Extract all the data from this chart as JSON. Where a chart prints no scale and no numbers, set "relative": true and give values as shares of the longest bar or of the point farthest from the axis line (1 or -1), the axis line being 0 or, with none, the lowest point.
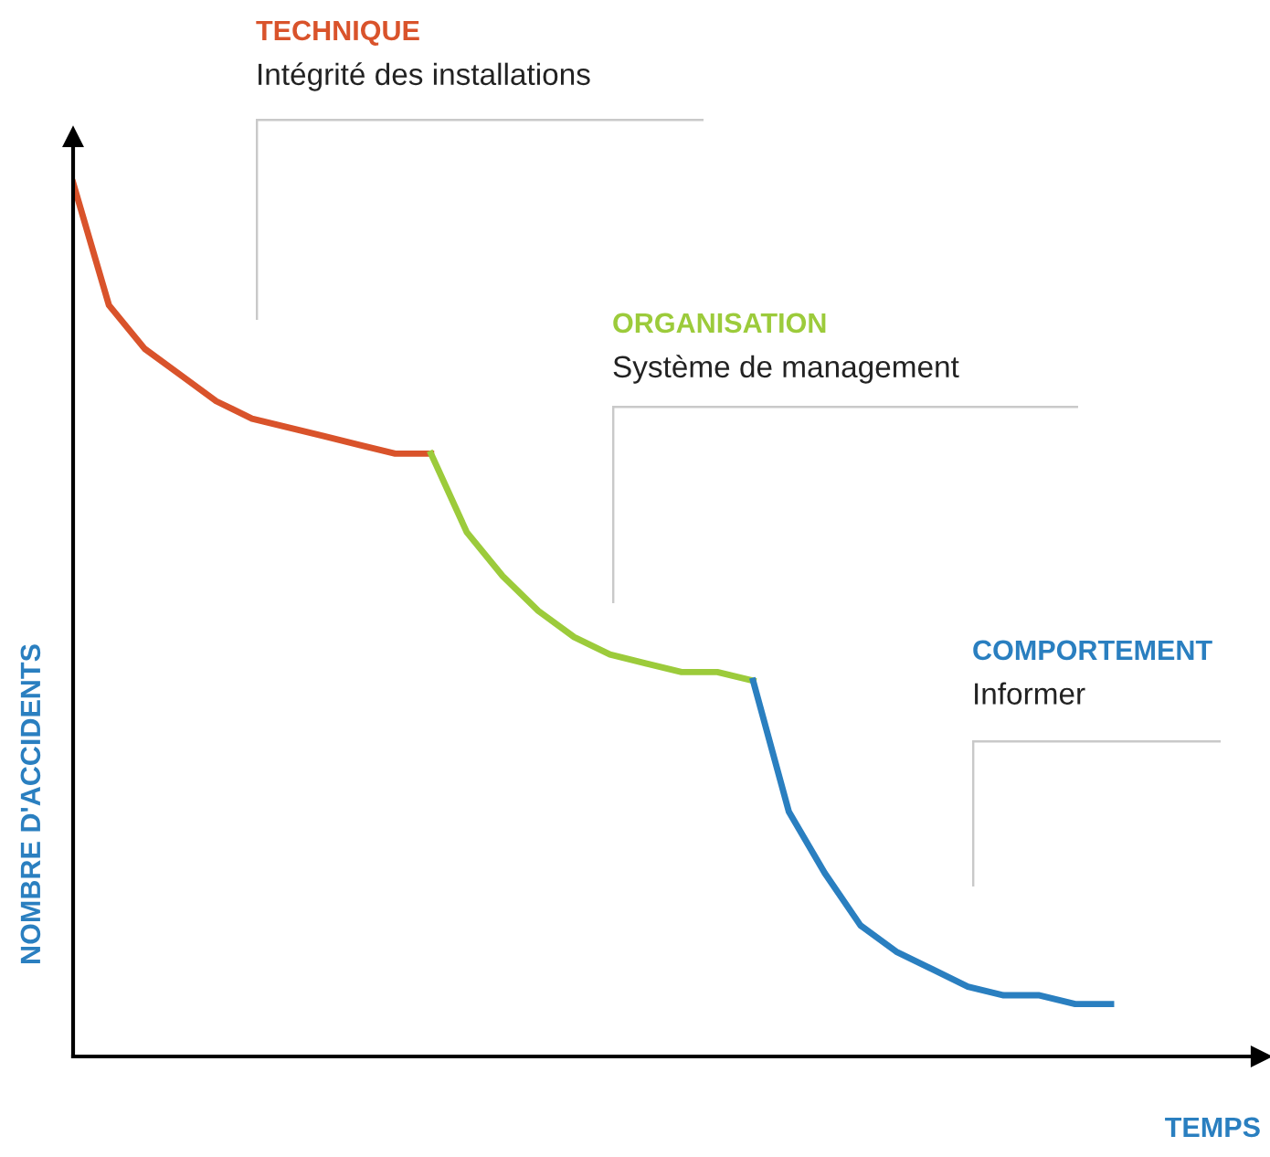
{
  "chart_data": {
    "type": "line",
    "relative": true,
    "xlabel": "TEMPS",
    "ylabel": "NOMBRE D'ACCIDENTS",
    "categories": [
      null,
      null,
      null,
      null,
      null,
      null,
      null,
      null,
      null,
      null,
      null,
      null,
      null,
      null,
      null,
      null,
      null,
      null,
      null,
      null,
      null,
      null,
      null,
      null,
      null,
      null,
      null,
      null,
      null,
      null
    ],
    "series": [
      {
        "name": "TECHNIQUE",
        "color": "#d9532b",
        "values": [
          1.0,
          0.86,
          0.81,
          0.78,
          0.75,
          0.73,
          0.72,
          0.71,
          0.7,
          0.69,
          0.69,
          null,
          null,
          null,
          null,
          null,
          null,
          null,
          null,
          null,
          null,
          null,
          null,
          null,
          null,
          null,
          null,
          null,
          null,
          null
        ]
      },
      {
        "name": "ORGANISATION",
        "color": "#9ccb3b",
        "values": [
          null,
          null,
          null,
          null,
          null,
          null,
          null,
          null,
          null,
          null,
          0.69,
          0.6,
          0.55,
          0.51,
          0.48,
          0.46,
          0.45,
          0.44,
          0.44,
          0.43,
          null,
          null,
          null,
          null,
          null,
          null,
          null,
          null,
          null,
          null
        ]
      },
      {
        "name": "COMPORTEMENT",
        "color": "#2a7fc0",
        "values": [
          null,
          null,
          null,
          null,
          null,
          null,
          null,
          null,
          null,
          null,
          null,
          null,
          null,
          null,
          null,
          null,
          null,
          null,
          null,
          0.43,
          0.28,
          0.21,
          0.15,
          0.12,
          0.1,
          0.08,
          0.07,
          0.07,
          0.06,
          0.06
        ]
      }
    ],
    "annotations": [
      "Intégrité des installations",
      "Système de management",
      "Informer"
    ],
    "line_style": "solid",
    "marker": "none",
    "grid": false,
    "legend": false
  }
}
